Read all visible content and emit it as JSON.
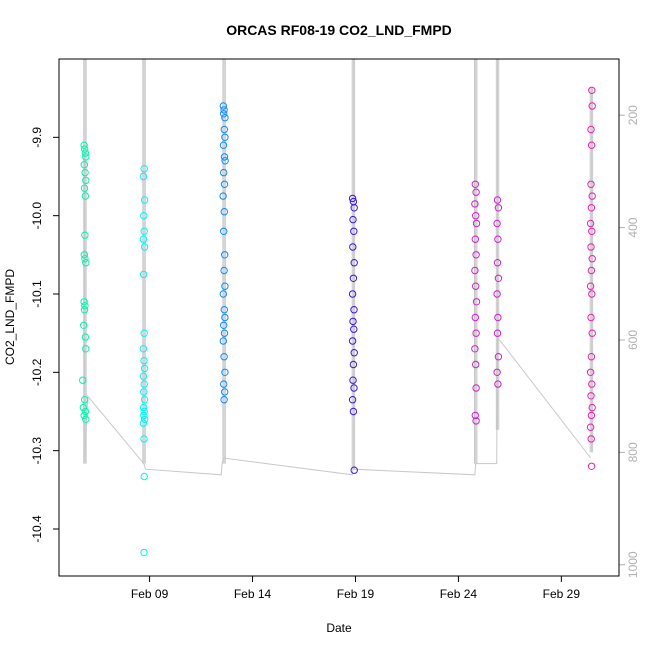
{
  "chart_data": {
    "type": "scatter",
    "title": "ORCAS RF08-19 CO2_LND_FMPD",
    "xlabel": "Date",
    "ylabel": "CO2_LND_FMPD",
    "x_ticks": [
      {
        "day": 9,
        "label": "Feb 09"
      },
      {
        "day": 14,
        "label": "Feb 14"
      },
      {
        "day": 19,
        "label": "Feb 19"
      },
      {
        "day": 24,
        "label": "Feb 24"
      },
      {
        "day": 29,
        "label": "Feb 29"
      }
    ],
    "xlim": [
      4.6,
      31.8
    ],
    "ylim": [
      -10.46,
      -9.8
    ],
    "y_ticks": [
      -10.4,
      -10.3,
      -10.2,
      -10.1,
      -10.0,
      -9.9
    ],
    "y_tick_labels": [
      "-10.4",
      "-10.3",
      "-10.2",
      "-10.1",
      "-10.0",
      "-9.9"
    ],
    "right_axis": {
      "range": [
        1020,
        100
      ],
      "ticks": [
        200,
        400,
        600,
        800,
        1000
      ],
      "tick_labels": [
        "200",
        "400",
        "600",
        "800",
        "1000"
      ],
      "color": "#b0b0b0"
    },
    "series": [
      {
        "color": "#00f5b0",
        "points": [
          [
            5.82,
            -9.91
          ],
          [
            5.85,
            -9.915
          ],
          [
            5.88,
            -9.92
          ],
          [
            5.9,
            -9.925
          ],
          [
            5.83,
            -9.935
          ],
          [
            5.87,
            -9.945
          ],
          [
            5.9,
            -9.955
          ],
          [
            5.84,
            -9.965
          ],
          [
            5.88,
            -9.975
          ],
          [
            5.86,
            -10.025
          ],
          [
            5.83,
            -10.05
          ],
          [
            5.86,
            -10.055
          ],
          [
            5.9,
            -10.06
          ],
          [
            5.82,
            -10.11
          ],
          [
            5.86,
            -10.115
          ],
          [
            5.84,
            -10.12
          ],
          [
            5.8,
            -10.14
          ],
          [
            5.88,
            -10.155
          ],
          [
            5.9,
            -10.17
          ],
          [
            5.75,
            -10.21
          ],
          [
            5.85,
            -10.235
          ],
          [
            5.78,
            -10.245
          ],
          [
            5.88,
            -10.25
          ],
          [
            5.82,
            -10.255
          ],
          [
            5.9,
            -10.26
          ]
        ]
      },
      {
        "color": "#00f5f5",
        "points": [
          [
            8.74,
            -9.94
          ],
          [
            8.7,
            -9.95
          ],
          [
            8.76,
            -9.98
          ],
          [
            8.72,
            -10.0
          ],
          [
            8.74,
            -10.02
          ],
          [
            8.7,
            -10.03
          ],
          [
            8.76,
            -10.04
          ],
          [
            8.71,
            -10.075
          ],
          [
            8.74,
            -10.15
          ],
          [
            8.7,
            -10.17
          ],
          [
            8.73,
            -10.185
          ],
          [
            8.76,
            -10.195
          ],
          [
            8.7,
            -10.205
          ],
          [
            8.74,
            -10.215
          ],
          [
            8.72,
            -10.225
          ],
          [
            8.76,
            -10.235
          ],
          [
            8.71,
            -10.245
          ],
          [
            8.74,
            -10.25
          ],
          [
            8.72,
            -10.255
          ],
          [
            8.76,
            -10.26
          ],
          [
            8.7,
            -10.265
          ],
          [
            8.73,
            -10.285
          ],
          [
            8.74,
            -10.333
          ],
          [
            8.73,
            -10.43
          ]
        ]
      },
      {
        "color": "#0a8cff",
        "points": [
          [
            12.58,
            -9.86
          ],
          [
            12.62,
            -9.865
          ],
          [
            12.6,
            -9.87
          ],
          [
            12.66,
            -9.875
          ],
          [
            12.63,
            -9.89
          ],
          [
            12.66,
            -9.9
          ],
          [
            12.59,
            -9.91
          ],
          [
            12.64,
            -9.925
          ],
          [
            12.67,
            -9.93
          ],
          [
            12.6,
            -9.945
          ],
          [
            12.64,
            -9.96
          ],
          [
            12.57,
            -9.975
          ],
          [
            12.63,
            -9.995
          ],
          [
            12.6,
            -10.02
          ],
          [
            12.65,
            -10.05
          ],
          [
            12.62,
            -10.07
          ],
          [
            12.66,
            -10.09
          ],
          [
            12.58,
            -10.1
          ],
          [
            12.63,
            -10.12
          ],
          [
            12.66,
            -10.13
          ],
          [
            12.6,
            -10.14
          ],
          [
            12.64,
            -10.15
          ],
          [
            12.58,
            -10.16
          ],
          [
            12.62,
            -10.18
          ],
          [
            12.66,
            -10.2
          ],
          [
            12.6,
            -10.215
          ],
          [
            12.65,
            -10.225
          ],
          [
            12.62,
            -10.235
          ]
        ]
      },
      {
        "color": "#3a16e6",
        "points": [
          [
            18.86,
            -9.978
          ],
          [
            18.9,
            -9.982
          ],
          [
            18.94,
            -9.99
          ],
          [
            18.88,
            -10.005
          ],
          [
            18.92,
            -10.02
          ],
          [
            18.87,
            -10.04
          ],
          [
            18.94,
            -10.06
          ],
          [
            18.9,
            -10.08
          ],
          [
            18.86,
            -10.1
          ],
          [
            18.93,
            -10.12
          ],
          [
            18.88,
            -10.135
          ],
          [
            18.92,
            -10.145
          ],
          [
            18.86,
            -10.16
          ],
          [
            18.94,
            -10.175
          ],
          [
            18.9,
            -10.19
          ],
          [
            18.88,
            -10.21
          ],
          [
            18.93,
            -10.22
          ],
          [
            18.86,
            -10.235
          ],
          [
            18.9,
            -10.25
          ],
          [
            18.94,
            -10.325
          ]
        ]
      },
      {
        "color": "#d21ed2",
        "points": [
          [
            24.82,
            -9.96
          ],
          [
            24.86,
            -9.97
          ],
          [
            24.8,
            -9.985
          ],
          [
            24.84,
            -10.0
          ],
          [
            24.88,
            -10.01
          ],
          [
            24.82,
            -10.03
          ],
          [
            24.86,
            -10.05
          ],
          [
            24.8,
            -10.07
          ],
          [
            24.84,
            -10.09
          ],
          [
            24.88,
            -10.11
          ],
          [
            24.82,
            -10.13
          ],
          [
            24.86,
            -10.15
          ],
          [
            24.8,
            -10.17
          ],
          [
            24.84,
            -10.19
          ],
          [
            24.86,
            -10.22
          ],
          [
            24.82,
            -10.255
          ],
          [
            24.86,
            -10.262
          ],
          [
            25.9,
            -9.98
          ],
          [
            25.94,
            -9.99
          ],
          [
            25.88,
            -10.01
          ],
          [
            25.92,
            -10.03
          ],
          [
            25.9,
            -10.06
          ],
          [
            25.94,
            -10.08
          ],
          [
            25.88,
            -10.1
          ],
          [
            25.92,
            -10.13
          ],
          [
            25.9,
            -10.15
          ],
          [
            25.94,
            -10.18
          ],
          [
            25.88,
            -10.2
          ],
          [
            25.92,
            -10.215
          ]
        ]
      },
      {
        "color": "#f01eb4",
        "points": [
          [
            30.48,
            -9.84
          ],
          [
            30.5,
            -9.86
          ],
          [
            30.44,
            -9.89
          ],
          [
            30.47,
            -9.91
          ],
          [
            30.44,
            -9.96
          ],
          [
            30.5,
            -9.975
          ],
          [
            30.46,
            -9.99
          ],
          [
            30.42,
            -10.01
          ],
          [
            30.48,
            -10.02
          ],
          [
            30.44,
            -10.04
          ],
          [
            30.5,
            -10.055
          ],
          [
            30.46,
            -10.07
          ],
          [
            30.42,
            -10.09
          ],
          [
            30.48,
            -10.1
          ],
          [
            30.44,
            -10.13
          ],
          [
            30.5,
            -10.15
          ],
          [
            30.46,
            -10.18
          ],
          [
            30.42,
            -10.2
          ],
          [
            30.48,
            -10.215
          ],
          [
            30.44,
            -10.23
          ],
          [
            30.5,
            -10.245
          ],
          [
            30.46,
            -10.255
          ],
          [
            30.42,
            -10.27
          ],
          [
            30.45,
            -10.285
          ],
          [
            30.47,
            -10.32
          ]
        ]
      }
    ],
    "track_series": {
      "color": "#c8c8c8",
      "points": [
        [
          5.82,
          270
        ],
        [
          5.85,
          820
        ],
        [
          6.0,
          700
        ],
        [
          8.72,
          820
        ],
        [
          8.8,
          830
        ],
        [
          12.48,
          840
        ],
        [
          12.52,
          820
        ],
        [
          12.58,
          810
        ],
        [
          18.84,
          840
        ],
        [
          18.88,
          830
        ],
        [
          24.8,
          840
        ],
        [
          24.84,
          820
        ],
        [
          25.86,
          820
        ],
        [
          25.9,
          600
        ],
        [
          26.0,
          600
        ],
        [
          30.42,
          810
        ]
      ]
    },
    "flight_spans": [
      {
        "day": 5.86,
        "top": 100,
        "bottom": 820
      },
      {
        "day": 8.73,
        "top": 100,
        "bottom": 820
      },
      {
        "day": 12.62,
        "top": 100,
        "bottom": 820
      },
      {
        "day": 18.9,
        "top": 100,
        "bottom": 830
      },
      {
        "day": 24.84,
        "top": 100,
        "bottom": 820
      },
      {
        "day": 25.9,
        "top": 100,
        "bottom": 760
      },
      {
        "day": 30.46,
        "top": 150,
        "bottom": 800
      }
    ],
    "grid": false,
    "legend": "none"
  }
}
